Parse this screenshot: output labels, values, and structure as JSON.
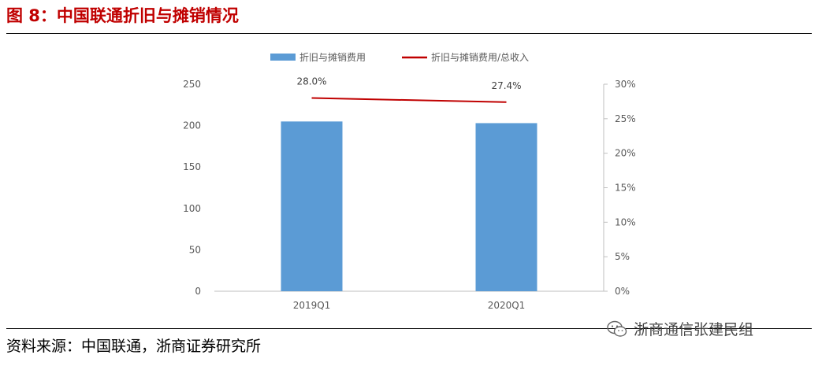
{
  "header": {
    "title": "图 8：中国联通折旧与摊销情况"
  },
  "footer": {
    "source": "资料来源：中国联通，浙商证券研究所",
    "watermark": "浙商通信张建民组",
    "watermark_icon": "wechat-icon"
  },
  "colors": {
    "title": "#c00000",
    "bar": "#5b9bd5",
    "line": "#c00000"
  },
  "chart_data": {
    "type": "bar",
    "categories": [
      "2019Q1",
      "2020Q1"
    ],
    "series": [
      {
        "name": "折旧与摊销费用",
        "type": "bar",
        "axis": "left",
        "values": [
          205,
          203
        ]
      },
      {
        "name": "折旧与摊销费用/总收入",
        "type": "line",
        "axis": "right",
        "values": [
          28.0,
          27.4
        ],
        "data_labels": [
          "28.0%",
          "27.4%"
        ]
      }
    ],
    "y_left": {
      "lim": [
        0,
        250
      ],
      "ticks": [
        "0",
        "50",
        "100",
        "150",
        "200",
        "250"
      ]
    },
    "y_right": {
      "lim": [
        0,
        30
      ],
      "ticks": [
        "0%",
        "5%",
        "10%",
        "15%",
        "20%",
        "25%",
        "30%"
      ]
    },
    "grid": false,
    "legend_position": "top-center"
  }
}
